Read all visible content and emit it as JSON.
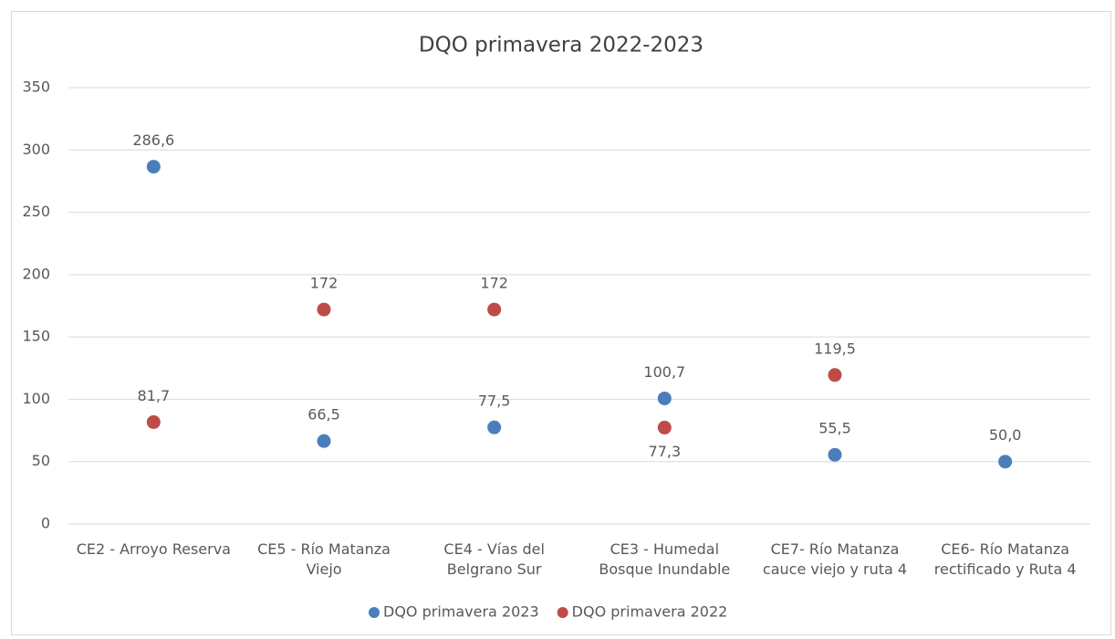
{
  "chart_data": {
    "type": "scatter",
    "title": "DQO primavera 2022-2023",
    "categories": [
      "CE2 - Arroyo Reserva",
      "CE5 - Río Matanza Viejo",
      "CE4 - Vías del Belgrano Sur",
      "CE3 - Humedal Bosque Inundable",
      "CE7-  Río Matanza cauce viejo y ruta 4",
      "CE6- Río Matanza rectificado y Ruta 4"
    ],
    "series": [
      {
        "name": "DQO primavera 2023",
        "color": "#4a7ebb",
        "values": [
          286.6,
          66.5,
          77.5,
          100.7,
          55.5,
          50.0
        ],
        "value_labels": [
          "286,6",
          "66,5",
          "77,5",
          "100,7",
          "55,5",
          "50,0"
        ]
      },
      {
        "name": "DQO primavera 2022",
        "color": "#be4b48",
        "values": [
          81.7,
          172,
          172,
          77.3,
          119.5,
          null
        ],
        "value_labels": [
          "81,7",
          "172",
          "172",
          "77,3",
          "119,5",
          null
        ]
      }
    ],
    "ylim": [
      0,
      350
    ],
    "yticks": [
      0,
      50,
      100,
      150,
      200,
      250,
      300,
      350
    ],
    "grid": true,
    "legend": "bottom"
  }
}
